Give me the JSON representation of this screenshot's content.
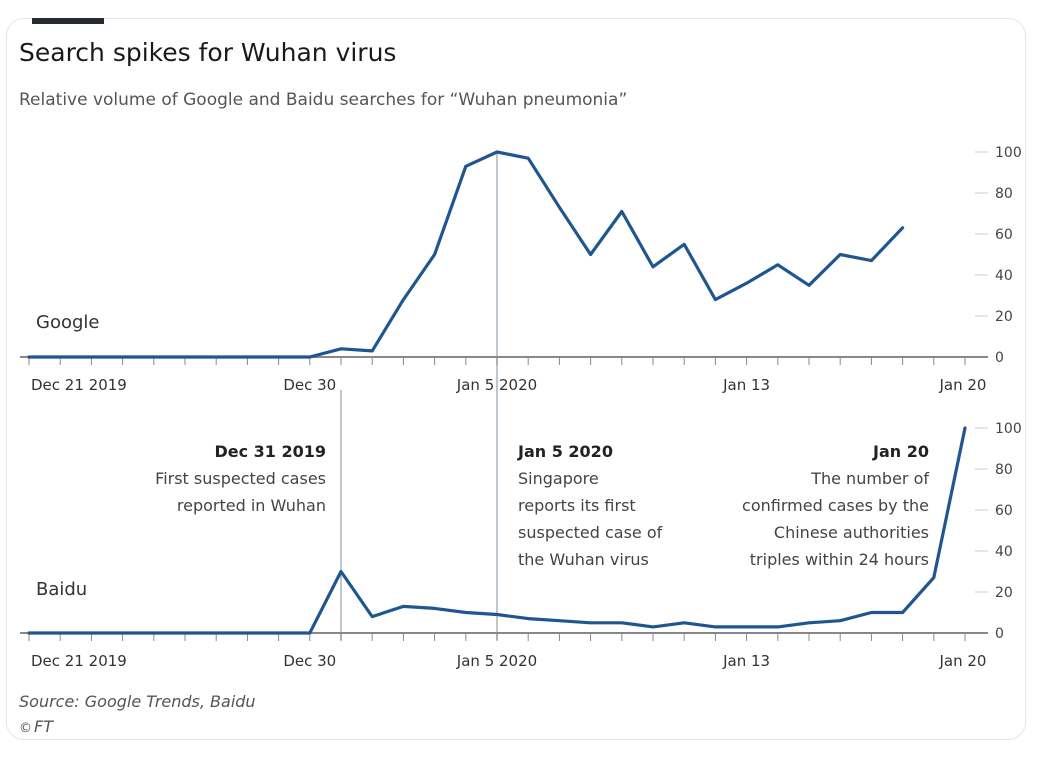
{
  "header": {
    "title": "Search spikes for Wuhan virus",
    "subtitle": "Relative volume of Google and Baidu searches for “Wuhan pneumonia”"
  },
  "footer": {
    "source": "Source: Google Trends, Baidu",
    "credit": "FT"
  },
  "annotations": [
    {
      "date": "Dec 31 2019",
      "lines": [
        "First suspected cases",
        "reported in Wuhan"
      ]
    },
    {
      "date": "Jan 5 2020",
      "lines": [
        "Singapore",
        "reports its first",
        "suspected case of",
        "the Wuhan virus"
      ]
    },
    {
      "date": "Jan 20",
      "lines": [
        "The number of",
        "confirmed cases by the",
        "Chinese authorities",
        "triples within 24 hours"
      ]
    }
  ],
  "colors": {
    "line": "#20568f",
    "axis": "#888888",
    "marker": "#a9b3be",
    "tick": "#cccccc"
  },
  "chart_data": [
    {
      "type": "line",
      "panel": "top",
      "series": [
        {
          "name": "Google",
          "x": [
            "2019-12-21",
            "2019-12-22",
            "2019-12-23",
            "2019-12-24",
            "2019-12-25",
            "2019-12-26",
            "2019-12-27",
            "2019-12-28",
            "2019-12-29",
            "2019-12-30",
            "2019-12-31",
            "2020-01-01",
            "2020-01-02",
            "2020-01-03",
            "2020-01-04",
            "2020-01-05",
            "2020-01-06",
            "2020-01-07",
            "2020-01-08",
            "2020-01-09",
            "2020-01-10",
            "2020-01-11",
            "2020-01-12",
            "2020-01-13",
            "2020-01-14",
            "2020-01-15",
            "2020-01-16",
            "2020-01-17",
            "2020-01-18",
            "2020-01-19"
          ],
          "values": [
            0,
            0,
            0,
            0,
            0,
            0,
            0,
            0,
            0,
            0,
            4,
            3,
            28,
            50,
            93,
            100,
            97,
            73,
            50,
            71,
            44,
            55,
            28,
            36,
            45,
            35,
            50,
            47,
            63,
            null
          ]
        }
      ],
      "xticks": [
        "Dec 21 2019",
        "Dec 30",
        "Jan 5 2020",
        "Jan 13",
        "Jan 20"
      ],
      "yticks": [
        0,
        20,
        40,
        60,
        80,
        100
      ],
      "ylim": [
        0,
        100
      ]
    },
    {
      "type": "line",
      "panel": "bottom",
      "series": [
        {
          "name": "Baidu",
          "x": [
            "2019-12-21",
            "2019-12-22",
            "2019-12-23",
            "2019-12-24",
            "2019-12-25",
            "2019-12-26",
            "2019-12-27",
            "2019-12-28",
            "2019-12-29",
            "2019-12-30",
            "2019-12-31",
            "2020-01-01",
            "2020-01-02",
            "2020-01-03",
            "2020-01-04",
            "2020-01-05",
            "2020-01-06",
            "2020-01-07",
            "2020-01-08",
            "2020-01-09",
            "2020-01-10",
            "2020-01-11",
            "2020-01-12",
            "2020-01-13",
            "2020-01-14",
            "2020-01-15",
            "2020-01-16",
            "2020-01-17",
            "2020-01-18",
            "2020-01-19",
            "2020-01-20"
          ],
          "values": [
            0,
            0,
            0,
            0,
            0,
            0,
            0,
            0,
            0,
            0,
            30,
            8,
            13,
            12,
            10,
            9,
            7,
            6,
            5,
            5,
            3,
            5,
            3,
            3,
            3,
            5,
            6,
            10,
            10,
            27,
            100
          ]
        }
      ],
      "xticks": [
        "Dec 21 2019",
        "Dec 30",
        "Jan 5 2020",
        "Jan 13",
        "Jan 20"
      ],
      "yticks": [
        0,
        20,
        40,
        60,
        80,
        100
      ],
      "ylim": [
        0,
        100
      ]
    }
  ]
}
